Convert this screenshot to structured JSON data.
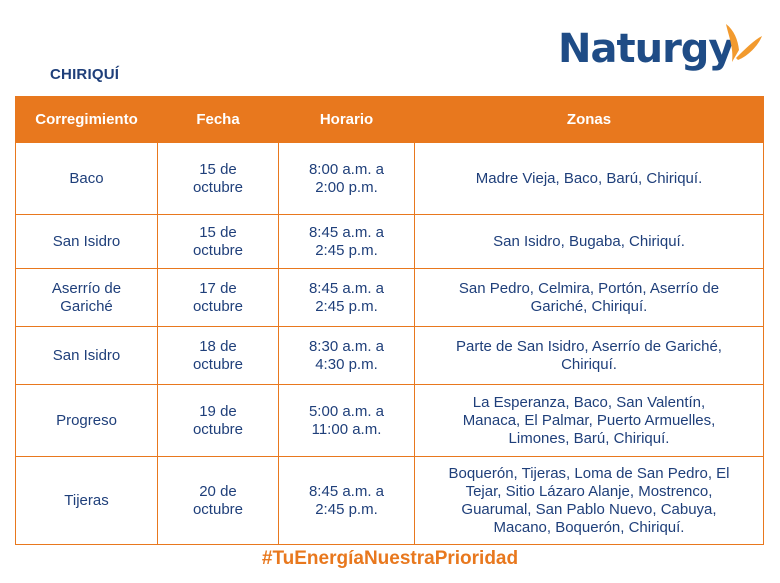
{
  "region": "CHIRIQUÍ",
  "logo": {
    "text": "Naturgy",
    "color": "#1f4c86",
    "accent": "#f29a2e"
  },
  "table": {
    "headers": [
      "Corregimiento",
      "Fecha",
      "Horario",
      "Zonas"
    ],
    "rows": [
      {
        "corregimiento": [
          "Baco"
        ],
        "fecha": [
          "15 de",
          "octubre"
        ],
        "horario": [
          "8:00 a.m. a",
          "2:00 p.m."
        ],
        "zonas": [
          "Madre Vieja, Baco, Barú, Chiriquí."
        ]
      },
      {
        "corregimiento": [
          "San Isidro"
        ],
        "fecha": [
          "15 de",
          "octubre"
        ],
        "horario": [
          "8:45 a.m. a",
          "2:45 p.m."
        ],
        "zonas": [
          "San Isidro, Bugaba, Chiriquí."
        ]
      },
      {
        "corregimiento": [
          "Aserrío de",
          "Gariché"
        ],
        "fecha": [
          "17 de",
          "octubre"
        ],
        "horario": [
          "8:45 a.m. a",
          "2:45 p.m."
        ],
        "zonas": [
          "San Pedro, Celmira, Portón, Aserrío de",
          "Gariché, Chiriquí."
        ]
      },
      {
        "corregimiento": [
          "San Isidro"
        ],
        "fecha": [
          "18 de",
          "octubre"
        ],
        "horario": [
          "8:30 a.m. a",
          "4:30 p.m."
        ],
        "zonas": [
          "Parte de San Isidro, Aserrío de Gariché,",
          "Chiriquí."
        ]
      },
      {
        "corregimiento": [
          "Progreso"
        ],
        "fecha": [
          "19 de",
          "octubre"
        ],
        "horario": [
          "5:00 a.m. a",
          "11:00 a.m."
        ],
        "zonas": [
          "La Esperanza, Baco, San Valentín,",
          "Manaca, El Palmar, Puerto Armuelles,",
          "Limones, Barú, Chiriquí."
        ]
      },
      {
        "corregimiento": [
          "Tijeras"
        ],
        "fecha": [
          "20 de",
          "octubre"
        ],
        "horario": [
          "8:45 a.m. a",
          "2:45 p.m."
        ],
        "zonas": [
          "Boquerón, Tijeras, Loma de San Pedro, El",
          "Tejar, Sitio Lázaro Alanje, Mostrenco,",
          "Guarumal, San Pablo Nuevo, Cabuya,",
          "Macano, Boquerón, Chiriquí."
        ]
      }
    ]
  },
  "footer": "#TuEnergíaNuestraPrioridad",
  "colors": {
    "accent": "#e8781e",
    "text": "#1f3f7a",
    "background": "#ffffff"
  }
}
